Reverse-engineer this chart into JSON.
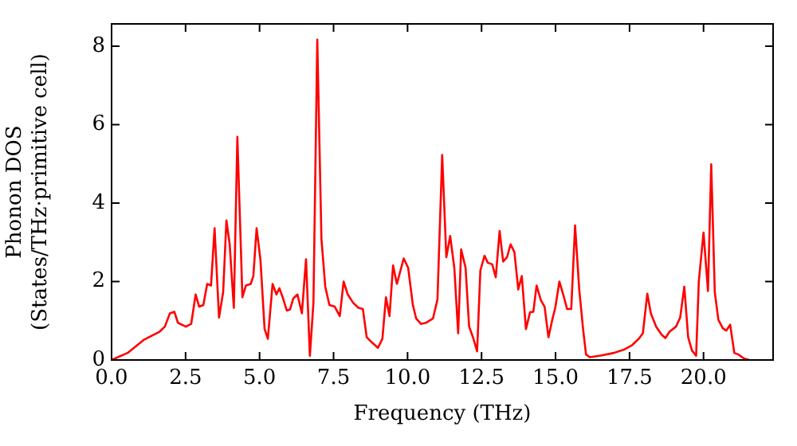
{
  "chart_data": {
    "type": "line",
    "xlabel": "Frequency (THz)",
    "ylabel": "Phonon DOS\n(States/THz·primitive cell)",
    "xlim": [
      0,
      22.35
    ],
    "ylim": [
      0,
      8.57
    ],
    "xticks": [
      {
        "value": 0,
        "label": "0.0"
      },
      {
        "value": 2.5,
        "label": "2.5"
      },
      {
        "value": 5,
        "label": "5.0"
      },
      {
        "value": 7.5,
        "label": "7.5"
      },
      {
        "value": 10,
        "label": "10.0"
      },
      {
        "value": 12.5,
        "label": "12.5"
      },
      {
        "value": 15,
        "label": "15.0"
      },
      {
        "value": 17.5,
        "label": "17.5"
      },
      {
        "value": 20,
        "label": "20.0"
      }
    ],
    "yticks": [
      0,
      2,
      4,
      6,
      8
    ],
    "grid": false,
    "legend": false,
    "marker": "none",
    "line_style": "solid",
    "series": [
      {
        "color": "#ff0000",
        "x": [
          0,
          0.54,
          1.08,
          1.26,
          1.62,
          1.8,
          1.97,
          2.12,
          2.24,
          2.51,
          2.69,
          2.84,
          2.96,
          3.1,
          3.23,
          3.36,
          3.48,
          3.63,
          3.77,
          3.88,
          3.99,
          4.13,
          4.25,
          4.42,
          4.54,
          4.7,
          4.79,
          4.9,
          5.03,
          5.17,
          5.28,
          5.44,
          5.57,
          5.67,
          5.78,
          5.92,
          6.03,
          6.14,
          6.28,
          6.43,
          6.57,
          6.7,
          6.82,
          6.95,
          7.09,
          7.22,
          7.36,
          7.54,
          7.71,
          7.84,
          7.98,
          8.16,
          8.34,
          8.49,
          8.62,
          8.79,
          9.0,
          9.15,
          9.27,
          9.39,
          9.51,
          9.64,
          9.87,
          10.02,
          10.18,
          10.29,
          10.45,
          10.63,
          10.86,
          11.01,
          11.17,
          11.31,
          11.44,
          11.58,
          11.71,
          11.81,
          11.96,
          12.08,
          12.21,
          12.35,
          12.46,
          12.6,
          12.71,
          12.86,
          12.98,
          13.11,
          13.23,
          13.36,
          13.48,
          13.61,
          13.74,
          13.86,
          14.0,
          14.14,
          14.25,
          14.36,
          14.5,
          14.63,
          14.76,
          14.9,
          14.99,
          15.13,
          15.26,
          15.39,
          15.53,
          15.66,
          15.8,
          15.93,
          16.03,
          16.16,
          16.52,
          16.97,
          17.33,
          17.59,
          17.81,
          17.95,
          18.1,
          18.22,
          18.4,
          18.58,
          18.71,
          18.85,
          19.07,
          19.21,
          19.35,
          19.48,
          19.61,
          19.75,
          19.84,
          20.0,
          20.15,
          20.26,
          20.38,
          20.5,
          20.65,
          20.77,
          20.9,
          21.04,
          21.18,
          21.36,
          21.54
        ],
        "values": [
          0,
          0.18,
          0.51,
          0.58,
          0.72,
          0.85,
          1.19,
          1.23,
          0.95,
          0.85,
          0.92,
          1.67,
          1.36,
          1.4,
          1.94,
          1.9,
          3.36,
          1.08,
          1.73,
          3.56,
          2.95,
          1.33,
          5.69,
          1.6,
          1.9,
          1.94,
          2.14,
          3.36,
          2.55,
          0.79,
          0.54,
          1.94,
          1.67,
          1.83,
          1.6,
          1.26,
          1.29,
          1.57,
          1.67,
          1.19,
          2.57,
          0.11,
          1.46,
          8.17,
          3.09,
          1.87,
          1.4,
          1.36,
          1.12,
          2.0,
          1.67,
          1.46,
          1.33,
          1.3,
          0.58,
          0.45,
          0.31,
          0.54,
          1.6,
          1.12,
          2.41,
          1.94,
          2.59,
          2.35,
          1.4,
          1.06,
          0.92,
          0.95,
          1.06,
          1.54,
          5.23,
          2.62,
          3.16,
          2.35,
          0.68,
          2.82,
          2.35,
          0.85,
          0.58,
          0.22,
          2.28,
          2.66,
          2.48,
          2.44,
          2.11,
          3.29,
          2.51,
          2.62,
          2.95,
          2.75,
          1.8,
          2.14,
          0.79,
          1.22,
          1.23,
          1.9,
          1.53,
          1.36,
          0.58,
          1.06,
          1.33,
          2.0,
          1.67,
          1.3,
          1.3,
          3.43,
          1.8,
          0.79,
          0.14,
          0.07,
          0.11,
          0.18,
          0.27,
          0.38,
          0.54,
          0.68,
          1.69,
          1.19,
          0.85,
          0.65,
          0.56,
          0.72,
          0.85,
          1.08,
          1.87,
          0.58,
          0.24,
          0.11,
          2.0,
          3.25,
          1.76,
          4.99,
          1.73,
          1.03,
          0.81,
          0.75,
          0.9,
          0.18,
          0.14,
          0.04,
          0
        ]
      }
    ]
  }
}
